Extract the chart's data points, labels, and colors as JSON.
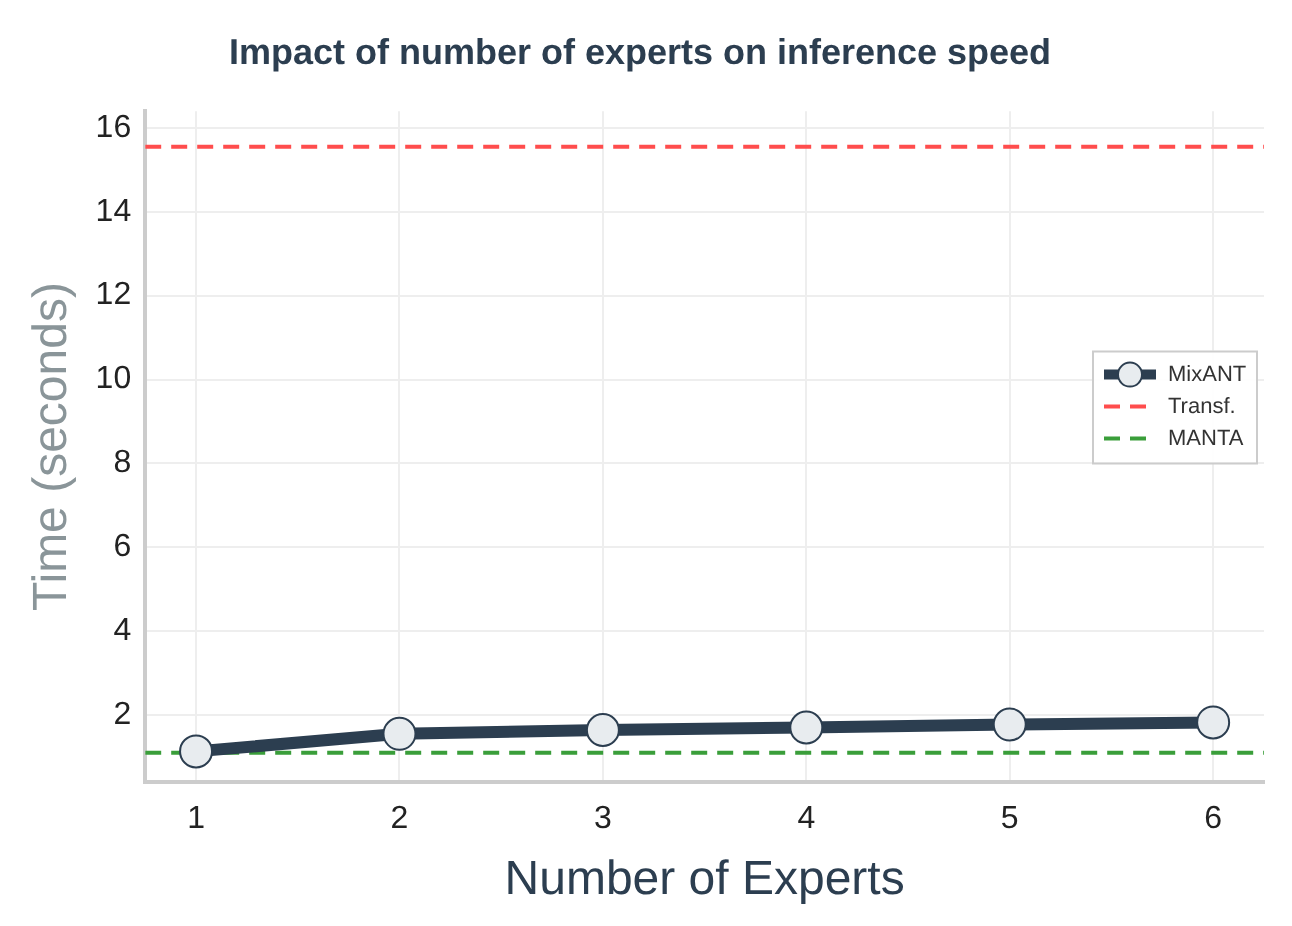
{
  "chart_data": {
    "type": "line",
    "title": "Impact of number of experts on inference speed",
    "xlabel": "Number of Experts",
    "ylabel": "Time (seconds)",
    "x": [
      1,
      2,
      3,
      4,
      5,
      6
    ],
    "series": [
      {
        "name": "MixANT",
        "color": "#2c3e50",
        "values": [
          1.13,
          1.55,
          1.64,
          1.7,
          1.77,
          1.82
        ]
      }
    ],
    "ref_lines": [
      {
        "axis": "y",
        "value": 15.55,
        "label": "Transf.",
        "color": "#ff4d4d",
        "line_style": "dashed"
      },
      {
        "axis": "y",
        "value": 1.1,
        "label": "MANTA",
        "color": "#3a9e3a",
        "line_style": "dashed"
      }
    ],
    "xlim": [
      0.75,
      6.25
    ],
    "xticks": [
      1,
      2,
      3,
      4,
      5,
      6
    ],
    "ylim": [
      0.4,
      16.4
    ],
    "yticks": [
      2,
      4,
      6,
      8,
      10,
      12,
      14,
      16
    ],
    "grid": true,
    "legend": "right",
    "marker": "circle",
    "line_style": "solid"
  }
}
